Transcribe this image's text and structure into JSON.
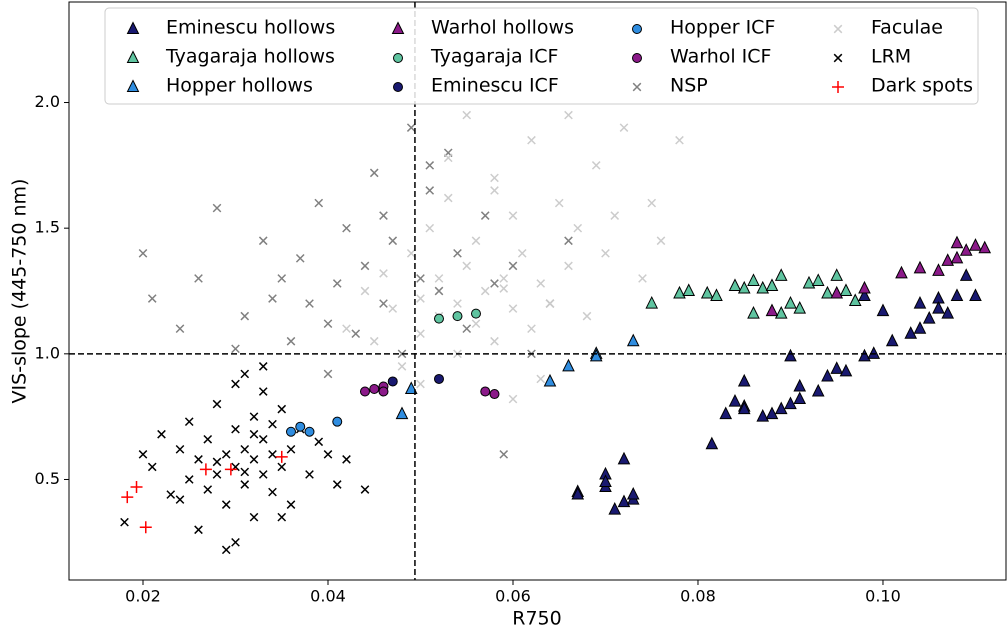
{
  "chart_data": {
    "type": "scatter",
    "xlabel": "R750",
    "ylabel": "VIS-slope (445-750 nm)",
    "xlim": [
      0.012,
      0.1133
    ],
    "ylim": [
      0.1,
      2.4
    ],
    "xticks": [
      0.02,
      0.04,
      0.06,
      0.08,
      {
        "value": 0.1,
        "label": "0.10"
      }
    ],
    "yticks": [
      0.5,
      {
        "value": 1.0,
        "label": "1.0"
      },
      1.5,
      {
        "value": 2.0,
        "label": "2.0"
      }
    ],
    "vline": 0.0494,
    "hline": 1.0,
    "legend": "top",
    "series": [
      {
        "name": "Eminescu hollows",
        "color": "#191970",
        "marker": "triangle",
        "x": [
          0.067,
          0.067,
          0.07,
          0.07,
          0.07,
          0.071,
          0.072,
          0.072,
          0.073,
          0.073,
          0.0815,
          0.083,
          0.084,
          0.085,
          0.085,
          0.085,
          0.087,
          0.088,
          0.089,
          0.09,
          0.09,
          0.091,
          0.091,
          0.093,
          0.094,
          0.095,
          0.096,
          0.098,
          0.099,
          0.101,
          0.103,
          0.104,
          0.104,
          0.105,
          0.106,
          0.106,
          0.107,
          0.108,
          0.109,
          0.11,
          0.098,
          0.1
        ],
        "y": [
          0.45,
          0.44,
          0.52,
          0.47,
          0.49,
          0.38,
          0.41,
          0.58,
          0.42,
          0.44,
          0.64,
          0.76,
          0.81,
          0.79,
          0.89,
          0.78,
          0.75,
          0.76,
          0.78,
          0.8,
          0.99,
          0.87,
          0.82,
          0.85,
          0.91,
          0.94,
          0.93,
          0.99,
          1.0,
          1.05,
          1.08,
          1.1,
          1.2,
          1.14,
          1.22,
          1.18,
          1.16,
          1.23,
          1.31,
          1.23,
          1.23,
          1.17
        ]
      },
      {
        "name": "Tyagaraja hollows",
        "color": "#5fc4a0",
        "marker": "triangle",
        "x": [
          0.075,
          0.078,
          0.079,
          0.081,
          0.082,
          0.084,
          0.085,
          0.086,
          0.086,
          0.087,
          0.088,
          0.089,
          0.089,
          0.09,
          0.091,
          0.092,
          0.093,
          0.094,
          0.095,
          0.096,
          0.097
        ],
        "y": [
          1.2,
          1.24,
          1.25,
          1.24,
          1.23,
          1.27,
          1.26,
          1.29,
          1.16,
          1.26,
          1.27,
          1.31,
          1.16,
          1.2,
          1.18,
          1.28,
          1.29,
          1.24,
          1.31,
          1.25,
          1.21
        ]
      },
      {
        "name": "Hopper hollows",
        "color": "#2f8de0",
        "marker": "triangle",
        "x": [
          0.048,
          0.049,
          0.064,
          0.066,
          0.069,
          0.069,
          0.073
        ],
        "y": [
          0.76,
          0.86,
          0.89,
          0.95,
          1.0,
          0.99,
          1.05
        ]
      },
      {
        "name": "Warhol hollows",
        "color": "#8b1a89",
        "marker": "triangle",
        "x": [
          0.088,
          0.095,
          0.098,
          0.102,
          0.104,
          0.106,
          0.107,
          0.108,
          0.108,
          0.109,
          0.11,
          0.111
        ],
        "y": [
          1.17,
          1.24,
          1.26,
          1.32,
          1.34,
          1.33,
          1.37,
          1.38,
          1.44,
          1.41,
          1.43,
          1.42
        ]
      },
      {
        "name": "Tyagaraja ICF",
        "color": "#5fc4a0",
        "marker": "circle",
        "x": [
          0.052,
          0.054,
          0.056
        ],
        "y": [
          1.14,
          1.15,
          1.16
        ]
      },
      {
        "name": "Eminescu ICF",
        "color": "#191970",
        "marker": "circle",
        "x": [
          0.047,
          0.052
        ],
        "y": [
          0.89,
          0.9
        ]
      },
      {
        "name": "Hopper ICF",
        "color": "#2f8de0",
        "marker": "circle",
        "x": [
          0.036,
          0.037,
          0.038,
          0.041
        ],
        "y": [
          0.69,
          0.71,
          0.69,
          0.73
        ]
      },
      {
        "name": "Warhol ICF",
        "color": "#8b1a89",
        "marker": "circle",
        "x": [
          0.044,
          0.045,
          0.046,
          0.046,
          0.057,
          0.058
        ],
        "y": [
          0.85,
          0.86,
          0.87,
          0.85,
          0.85,
          0.84
        ]
      },
      {
        "name": "NSP",
        "color": "#808080",
        "marker": "x",
        "x": [
          0.02,
          0.021,
          0.024,
          0.026,
          0.028,
          0.03,
          0.031,
          0.033,
          0.034,
          0.035,
          0.036,
          0.037,
          0.038,
          0.039,
          0.04,
          0.041,
          0.042,
          0.043,
          0.044,
          0.045,
          0.046,
          0.047,
          0.048,
          0.049,
          0.05,
          0.051,
          0.052,
          0.053,
          0.054,
          0.055,
          0.057,
          0.059,
          0.06,
          0.062,
          0.064,
          0.066,
          0.04,
          0.046,
          0.051,
          0.058
        ],
        "y": [
          1.4,
          1.22,
          1.1,
          1.3,
          1.58,
          1.02,
          1.15,
          1.45,
          1.22,
          1.3,
          1.05,
          1.38,
          1.2,
          1.6,
          1.12,
          1.28,
          1.5,
          1.08,
          1.35,
          1.72,
          1.2,
          1.45,
          1.0,
          1.9,
          1.3,
          1.65,
          1.25,
          1.8,
          1.4,
          1.1,
          1.55,
          0.6,
          1.35,
          1.0,
          1.2,
          1.45,
          0.92,
          1.55,
          1.75,
          1.28
        ]
      },
      {
        "name": "Faculae",
        "color": "#cccccc",
        "marker": "x",
        "x": [
          0.042,
          0.044,
          0.045,
          0.046,
          0.047,
          0.048,
          0.049,
          0.05,
          0.05,
          0.051,
          0.052,
          0.052,
          0.053,
          0.054,
          0.054,
          0.055,
          0.056,
          0.056,
          0.057,
          0.058,
          0.058,
          0.059,
          0.06,
          0.06,
          0.061,
          0.062,
          0.062,
          0.063,
          0.064,
          0.065,
          0.066,
          0.067,
          0.068,
          0.069,
          0.07,
          0.072,
          0.074,
          0.076,
          0.078,
          0.057,
          0.055,
          0.06,
          0.053,
          0.063,
          0.058,
          0.071,
          0.075,
          0.066,
          0.05,
          0.059
        ],
        "y": [
          1.1,
          1.25,
          1.05,
          1.32,
          1.18,
          0.95,
          1.4,
          1.22,
          1.08,
          1.5,
          1.3,
          1.15,
          1.62,
          1.2,
          1.0,
          1.35,
          1.45,
          1.12,
          1.25,
          1.05,
          1.7,
          1.3,
          1.18,
          1.55,
          1.4,
          1.1,
          1.85,
          1.28,
          1.2,
          1.6,
          1.35,
          1.5,
          1.15,
          1.75,
          1.4,
          1.9,
          1.3,
          1.45,
          1.85,
          0.85,
          1.95,
          0.82,
          1.78,
          0.9,
          1.65,
          1.55,
          1.6,
          1.95,
          0.88,
          1.26
        ]
      },
      {
        "name": "LRM",
        "color": "#000000",
        "marker": "x",
        "x": [
          0.018,
          0.02,
          0.021,
          0.022,
          0.023,
          0.024,
          0.025,
          0.025,
          0.026,
          0.027,
          0.027,
          0.028,
          0.028,
          0.029,
          0.029,
          0.03,
          0.03,
          0.03,
          0.031,
          0.031,
          0.031,
          0.032,
          0.032,
          0.032,
          0.033,
          0.033,
          0.033,
          0.034,
          0.034,
          0.035,
          0.035,
          0.036,
          0.036,
          0.037,
          0.038,
          0.039,
          0.04,
          0.041,
          0.042,
          0.044,
          0.029,
          0.03,
          0.026,
          0.033,
          0.035,
          0.032,
          0.028,
          0.031,
          0.034,
          0.024
        ],
        "y": [
          0.33,
          0.6,
          0.55,
          0.68,
          0.44,
          0.62,
          0.5,
          0.73,
          0.58,
          0.46,
          0.66,
          0.52,
          0.8,
          0.6,
          0.4,
          0.55,
          0.7,
          0.25,
          0.48,
          0.62,
          0.92,
          0.58,
          0.75,
          0.35,
          0.52,
          0.66,
          0.85,
          0.45,
          0.6,
          0.55,
          0.78,
          0.62,
          0.4,
          0.7,
          0.52,
          0.65,
          0.6,
          0.48,
          0.58,
          0.46,
          0.22,
          0.88,
          0.3,
          0.95,
          0.35,
          0.68,
          0.57,
          0.53,
          0.72,
          0.42
        ]
      },
      {
        "name": "Dark spots",
        "color": "#ff0000",
        "marker": "plus",
        "x": [
          0.0183,
          0.0193,
          0.0203,
          0.0268,
          0.0295,
          0.035
        ],
        "y": [
          0.43,
          0.47,
          0.31,
          0.54,
          0.54,
          0.59
        ]
      }
    ]
  }
}
